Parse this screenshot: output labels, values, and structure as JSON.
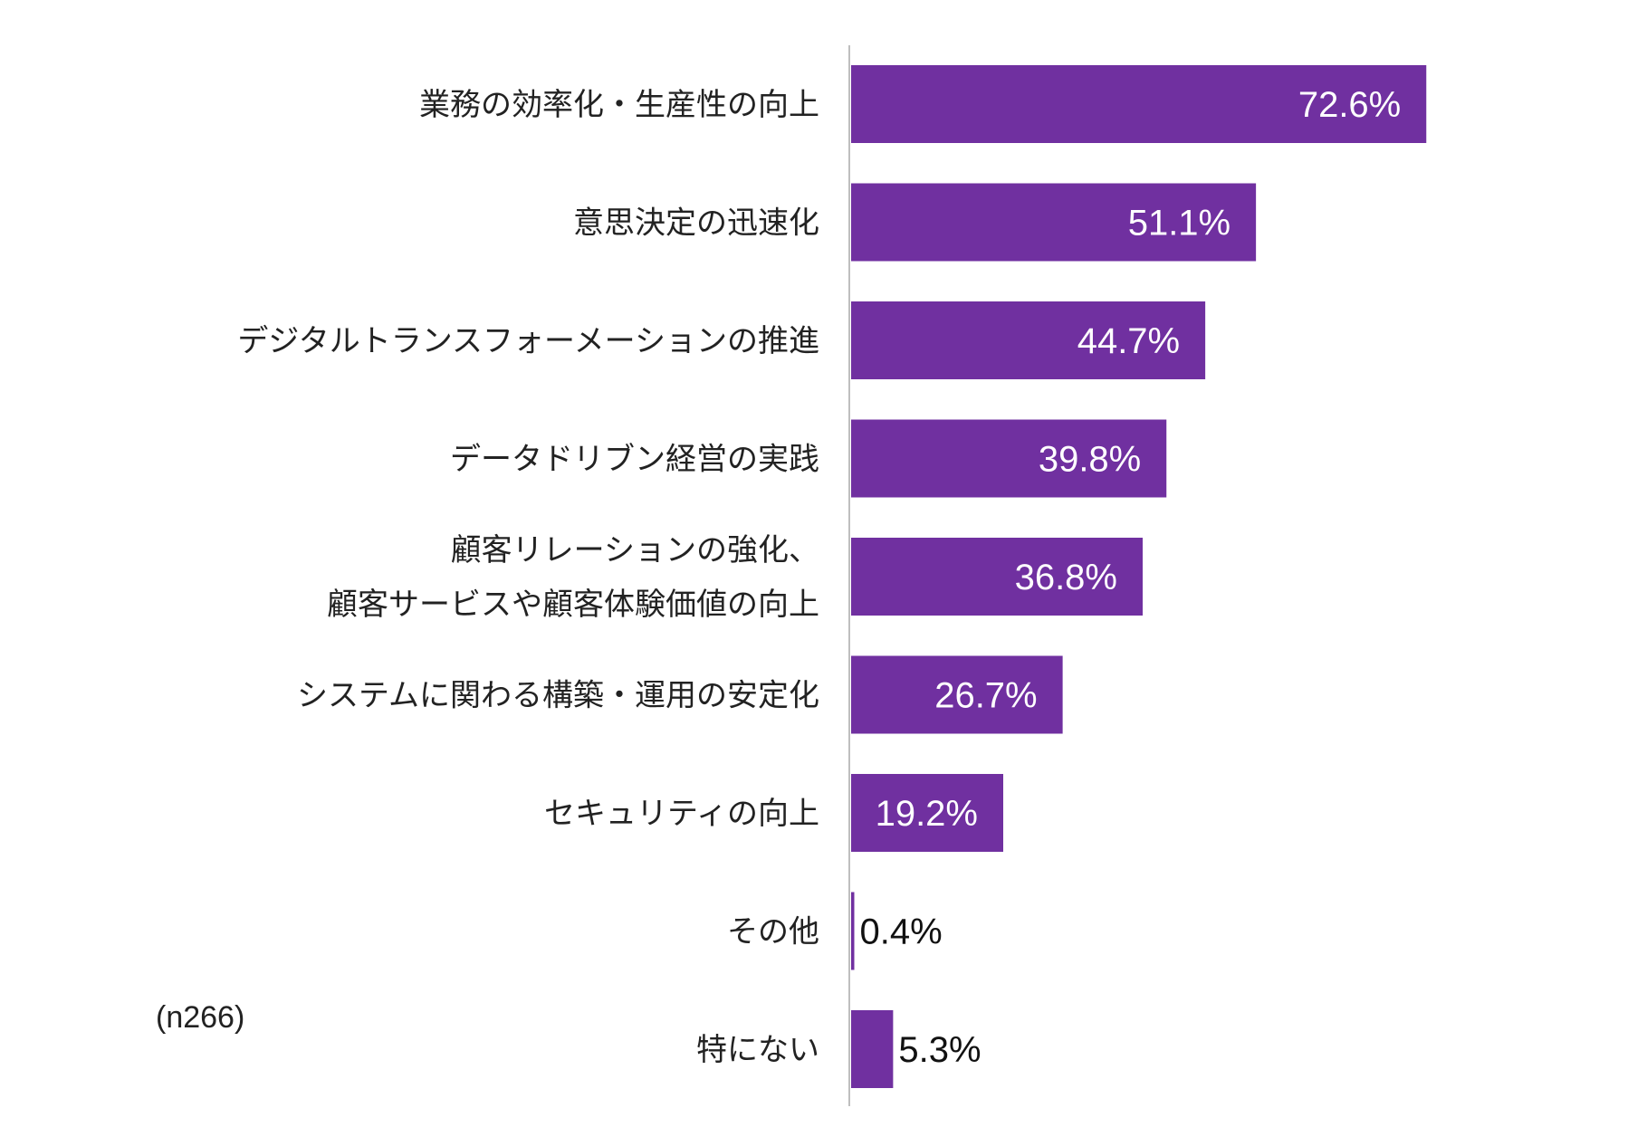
{
  "chart_data": {
    "type": "bar",
    "orientation": "horizontal",
    "categories": [
      [
        "業務の効率化・生産性の向上"
      ],
      [
        "意思決定の迅速化"
      ],
      [
        "デジタルトランスフォーメーションの推進"
      ],
      [
        "データドリブン経営の実践"
      ],
      [
        "顧客リレーションの強化、",
        "顧客サービスや顧客体験価値の向上"
      ],
      [
        "システムに関わる構築・運用の安定化"
      ],
      [
        "セキュリティの向上"
      ],
      [
        "その他"
      ],
      [
        "特にない"
      ]
    ],
    "values": [
      72.6,
      51.1,
      44.7,
      39.8,
      36.8,
      26.7,
      19.2,
      0.4,
      5.3
    ],
    "value_labels": [
      "72.6%",
      "51.1%",
      "44.7%",
      "39.8%",
      "36.8%",
      "26.7%",
      "19.2%",
      "0.4%",
      "5.3%"
    ],
    "xlim": [
      0,
      80
    ],
    "note": "(n266)",
    "bar_color": "#7030a0",
    "axis_color": "#bfbfbf",
    "grid": false,
    "legend": "none"
  }
}
